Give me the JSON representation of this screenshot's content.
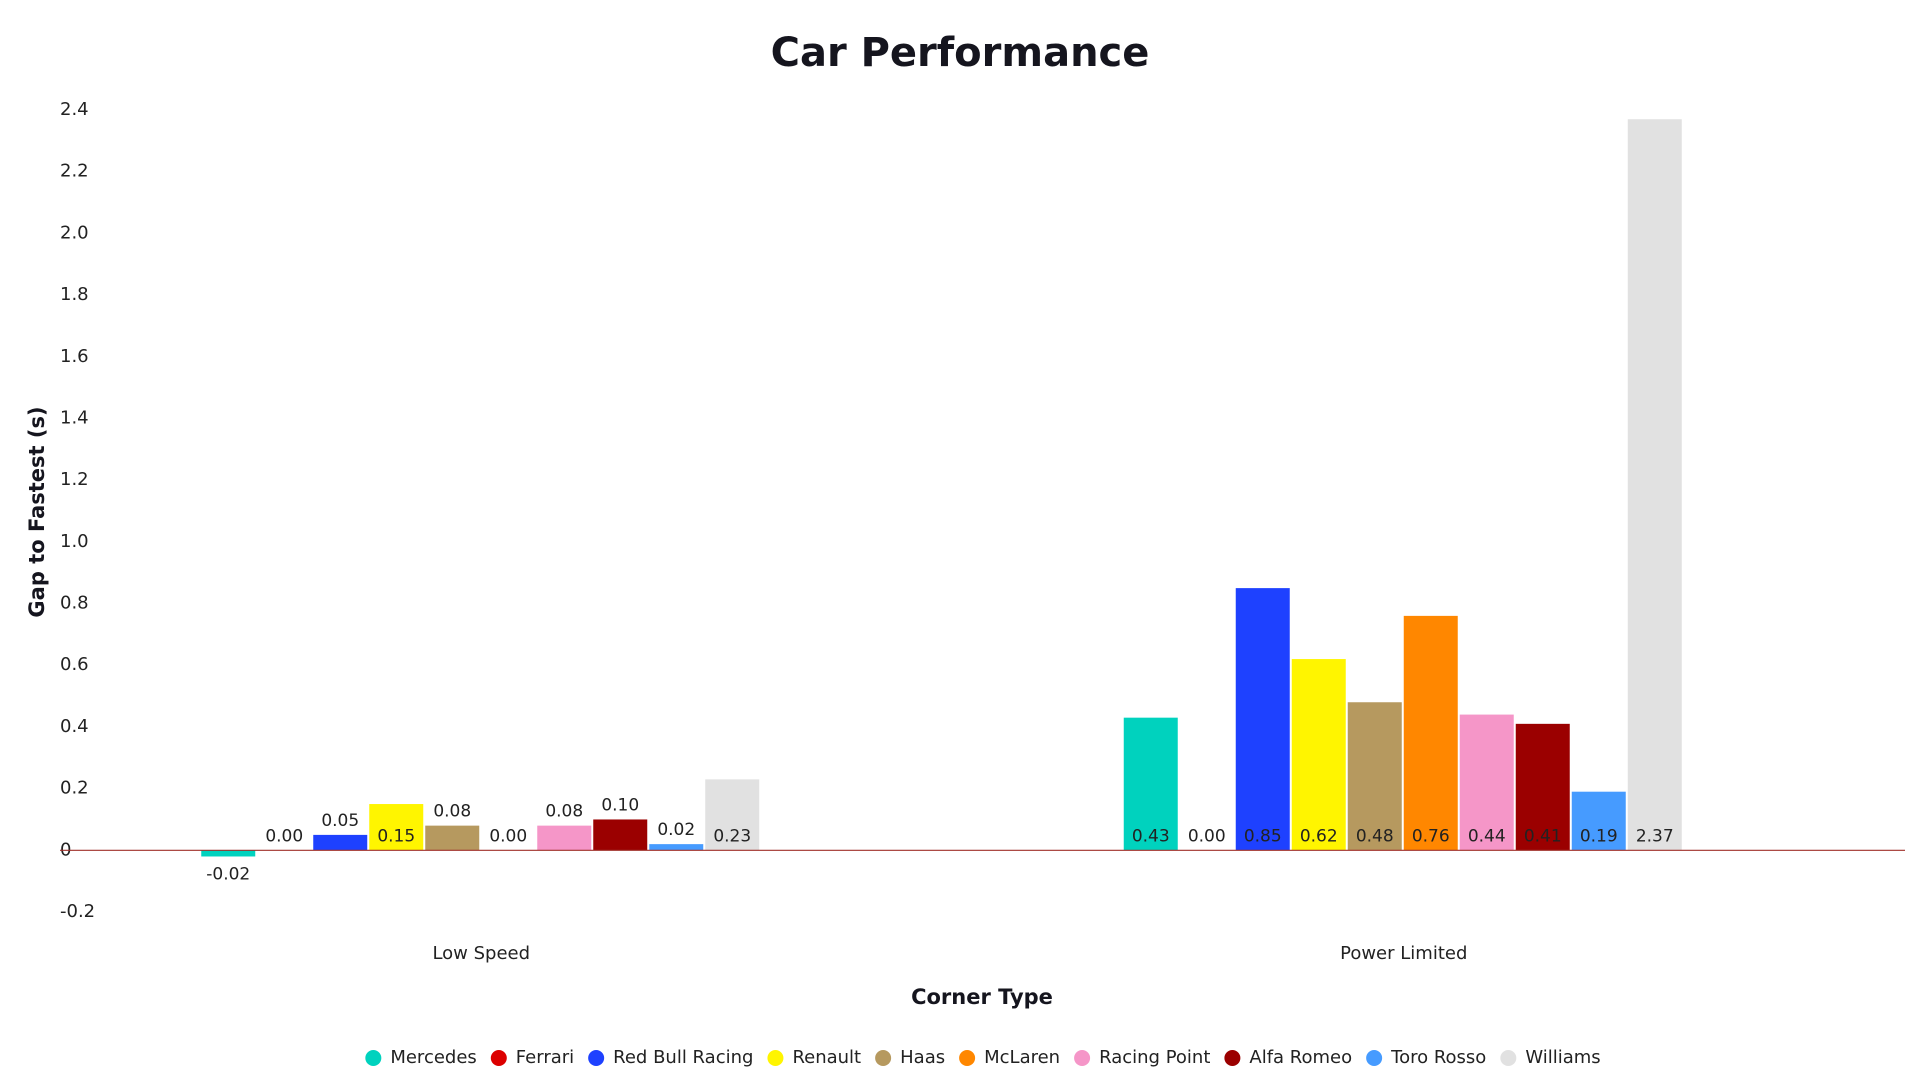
{
  "chart_data": {
    "type": "bar",
    "title": "Car Performance",
    "x_label": "Corner Type",
    "y_label": "Gap to Fastest (s)",
    "categories": [
      "Low Speed",
      "Power Limited"
    ],
    "series": [
      {
        "name": "Mercedes",
        "color": "#00d2be",
        "values": [
          -0.02,
          0.43
        ],
        "value_labels": [
          "-0.02",
          "0.43"
        ]
      },
      {
        "name": "Ferrari",
        "color": "#dc0000",
        "values": [
          0,
          0
        ],
        "value_labels": [
          "0.00",
          "0.00"
        ]
      },
      {
        "name": "Red Bull Racing",
        "color": "#1e41ff",
        "values": [
          0.05,
          0.85
        ],
        "value_labels": [
          "0.05",
          "0.85"
        ]
      },
      {
        "name": "Renault",
        "color": "#fff500",
        "values": [
          0.15,
          0.62
        ],
        "value_labels": [
          "0.15",
          "0.62"
        ]
      },
      {
        "name": "Haas",
        "color": "#b6995f",
        "values": [
          0.08,
          0.48
        ],
        "value_labels": [
          "0.08",
          "0.48"
        ]
      },
      {
        "name": "McLaren",
        "color": "#ff8700",
        "values": [
          0,
          0.76
        ],
        "value_labels": [
          "0.00",
          "0.76"
        ]
      },
      {
        "name": "Racing Point",
        "color": "#f596c8",
        "values": [
          0.08,
          0.44
        ],
        "value_labels": [
          "0.08",
          "0.44"
        ]
      },
      {
        "name": "Alfa Romeo",
        "color": "#9b0000",
        "values": [
          0.1,
          0.41
        ],
        "value_labels": [
          "0.10",
          "0.41"
        ]
      },
      {
        "name": "Toro Rosso",
        "color": "#469bff",
        "values": [
          0.02,
          0.19
        ],
        "value_labels": [
          "0.02",
          "0.19"
        ]
      },
      {
        "name": "Williams",
        "color": "#e1e1e1",
        "values": [
          0.23,
          2.37
        ],
        "value_labels": [
          "0.23",
          "2.37"
        ]
      }
    ],
    "ylim": [
      -0.2,
      2.4
    ],
    "yticks": [
      -0.2,
      0,
      0.2,
      0.4,
      0.6,
      0.8,
      {
        "value": 1,
        "label": "1.0"
      },
      1.2,
      1.4,
      1.6,
      1.8,
      {
        "value": 2,
        "label": "2.0"
      },
      2.2,
      2.4
    ],
    "grid": false,
    "legend": "bottom",
    "zero_line_color": "#a0302a"
  }
}
